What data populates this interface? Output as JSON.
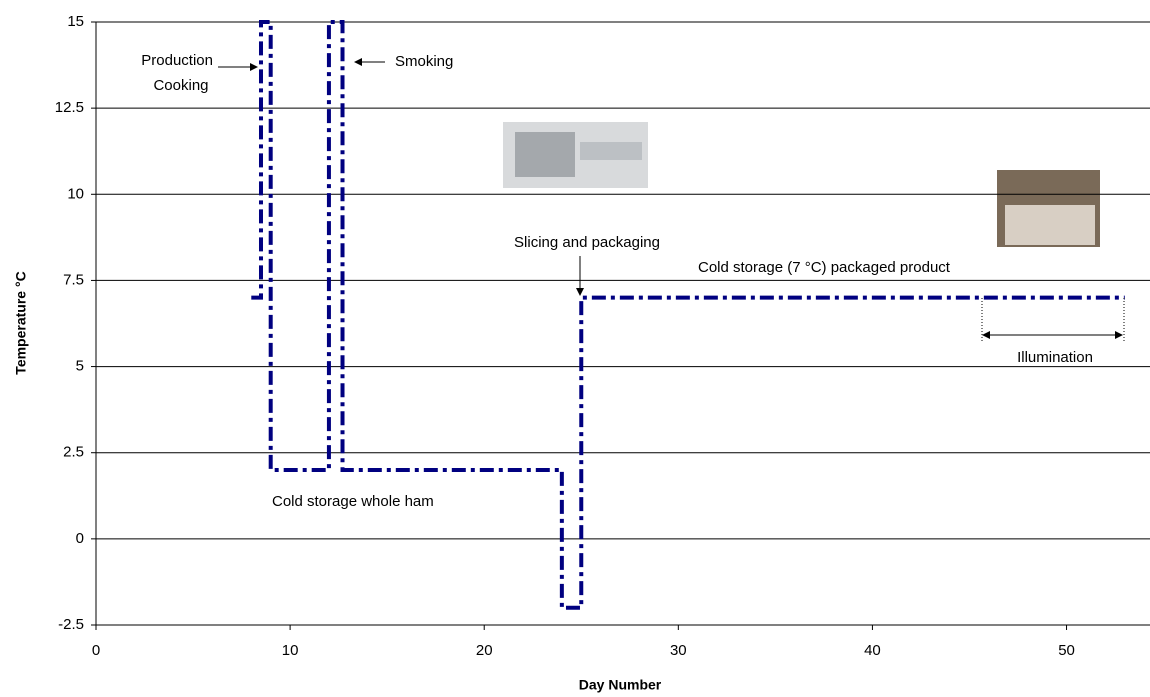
{
  "chart_data": {
    "type": "line",
    "xlabel": "Day Number",
    "ylabel": "Temperature °C",
    "series": [
      {
        "color": "#000080",
        "x": [
          8,
          8.5,
          8.5,
          9,
          9,
          12,
          12,
          12.7,
          12.7,
          24,
          24,
          25,
          25,
          53
        ],
        "values": [
          7,
          7,
          15,
          15,
          2,
          2,
          15,
          15,
          2,
          2,
          -2,
          -2,
          7,
          7
        ]
      }
    ],
    "xlim": [
      0,
      54.3
    ],
    "xticks": [
      0,
      10,
      20,
      30,
      40,
      50
    ],
    "ylim": [
      -2.5,
      15
    ],
    "yticks": [
      -2.5,
      0,
      2.5,
      5,
      7.5,
      10,
      12.5,
      15
    ],
    "grid": true,
    "annotations": [
      "Production",
      "Cooking",
      "Smoking",
      "Slicing and packaging",
      "Cold storage (7 °C) packaged product",
      "Illumination",
      "Cold storage whole ham"
    ]
  }
}
